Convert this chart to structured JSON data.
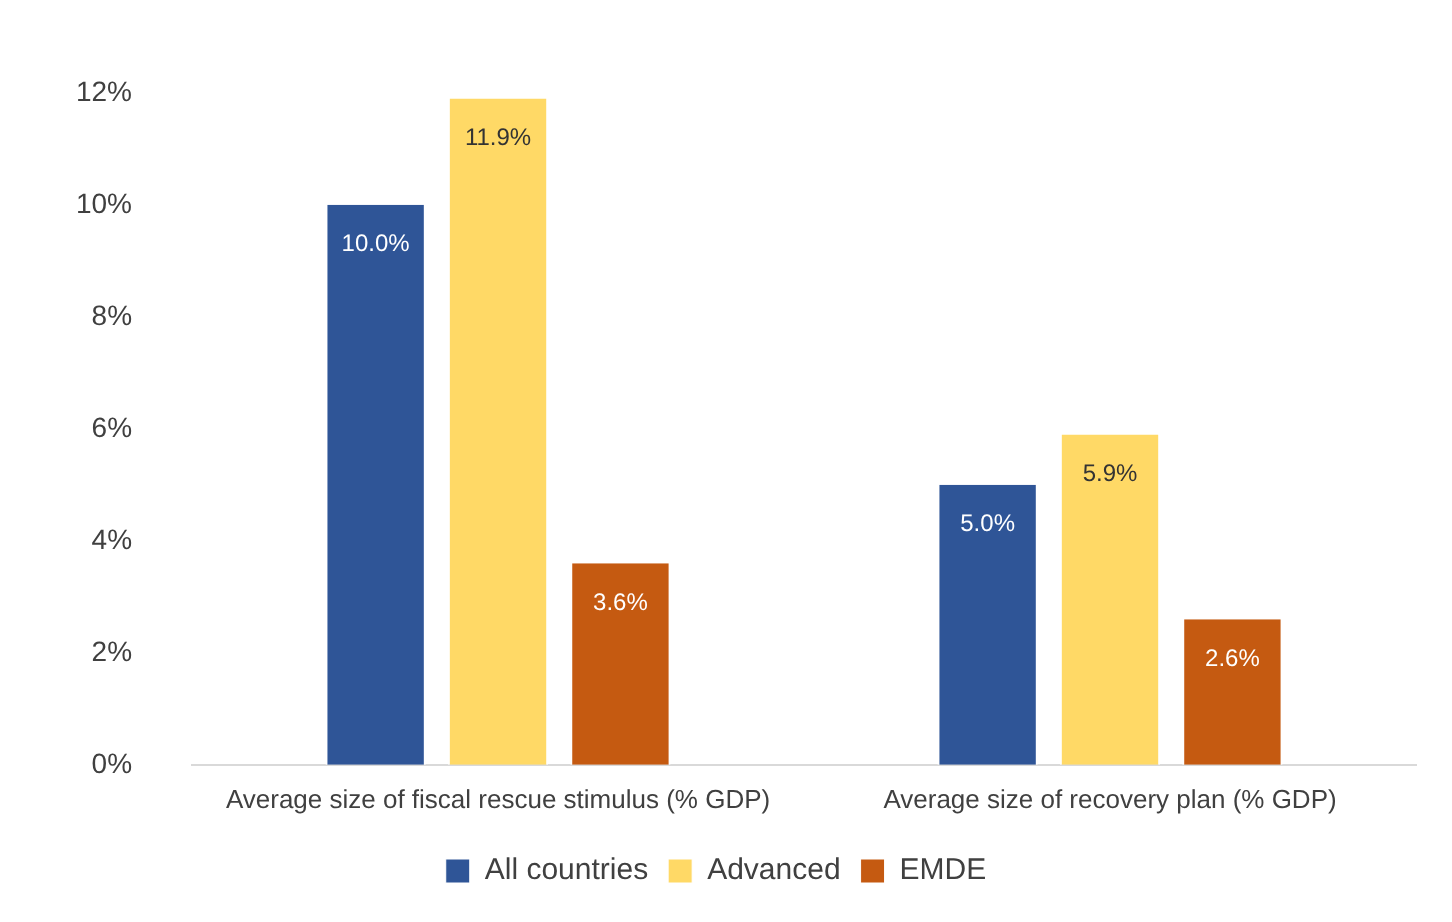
{
  "chart_data": {
    "type": "bar",
    "categories": [
      "Average size of fiscal rescue stimulus (% GDP)",
      "Average size of recovery plan (% GDP)"
    ],
    "series": [
      {
        "name": "All countries",
        "color": "#2f5597",
        "values": [
          10.0,
          5.0
        ],
        "value_labels": [
          "10.0%",
          "5.0%"
        ]
      },
      {
        "name": "Advanced",
        "color": "#ffd966",
        "values": [
          11.9,
          5.9
        ],
        "value_labels": [
          "11.9%",
          "5.9%"
        ]
      },
      {
        "name": "EMDE",
        "color": "#c55a11",
        "values": [
          3.6,
          2.6
        ],
        "value_labels": [
          "3.6%",
          "2.6%"
        ]
      }
    ],
    "ylim": [
      0,
      12
    ],
    "yticks": [
      {
        "value": 0,
        "label": "0%"
      },
      {
        "value": 2,
        "label": "2%"
      },
      {
        "value": 4,
        "label": "4%"
      },
      {
        "value": 6,
        "label": "6%"
      },
      {
        "value": 8,
        "label": "8%"
      },
      {
        "value": 10,
        "label": "10%"
      },
      {
        "value": 12,
        "label": "12%"
      }
    ],
    "grid": false,
    "legend": "bottom"
  }
}
